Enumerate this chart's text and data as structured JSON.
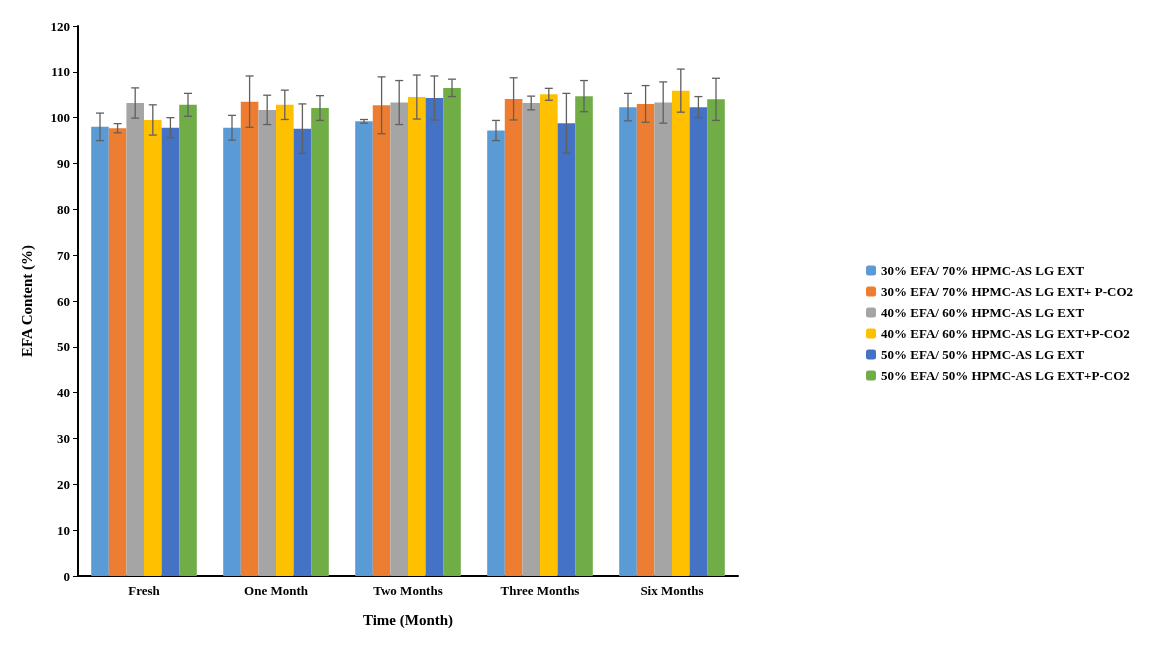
{
  "chart_data": {
    "type": "bar",
    "xlabel": "Time (Month)",
    "ylabel": "EFA Content (%)",
    "categories": [
      "Fresh",
      "One Month",
      "Two Months",
      "Three Months",
      "Six Months"
    ],
    "series": [
      {
        "name": "30% EFA/ 70% HPMC-AS LG EXT",
        "color": "#5b9bd5",
        "values": [
          98.0,
          97.8,
          99.2,
          97.2,
          102.3
        ],
        "errors": [
          3.0,
          2.7,
          0.4,
          2.2,
          3.0
        ]
      },
      {
        "name": "30% EFA/ 70% HPMC-AS LG EXT+ P-CO2",
        "color": "#ed7d31",
        "values": [
          97.7,
          103.5,
          102.7,
          104.1,
          103.0
        ],
        "errors": [
          1.0,
          5.6,
          6.2,
          4.6,
          4.0
        ]
      },
      {
        "name": "40% EFA/ 60% HPMC-AS LG EXT",
        "color": "#a5a5a5",
        "values": [
          103.2,
          101.7,
          103.3,
          103.2,
          103.3
        ],
        "errors": [
          3.3,
          3.2,
          4.8,
          1.5,
          4.5
        ]
      },
      {
        "name": "40% EFA/ 60% HPMC-AS LG EXT+P-CO2",
        "color": "#ffc000",
        "values": [
          99.5,
          102.8,
          104.5,
          105.1,
          105.9
        ],
        "errors": [
          3.3,
          3.2,
          4.8,
          1.3,
          4.7
        ]
      },
      {
        "name": "50% EFA/ 50% HPMC-AS LG EXT",
        "color": "#4472c4",
        "values": [
          97.8,
          97.6,
          104.3,
          98.8,
          102.3
        ],
        "errors": [
          2.2,
          5.4,
          4.8,
          6.5,
          2.3
        ]
      },
      {
        "name": "50% EFA/ 50% HPMC-AS LG EXT+P-CO2",
        "color": "#70ad47",
        "values": [
          102.8,
          102.1,
          106.5,
          104.7,
          104.0
        ],
        "errors": [
          2.5,
          2.7,
          1.9,
          3.4,
          4.6
        ]
      }
    ],
    "ylim": [
      0,
      120
    ],
    "yticks": [
      0,
      10,
      20,
      30,
      40,
      50,
      60,
      70,
      80,
      90,
      100,
      110,
      120
    ],
    "grid": false,
    "legend": "right"
  }
}
